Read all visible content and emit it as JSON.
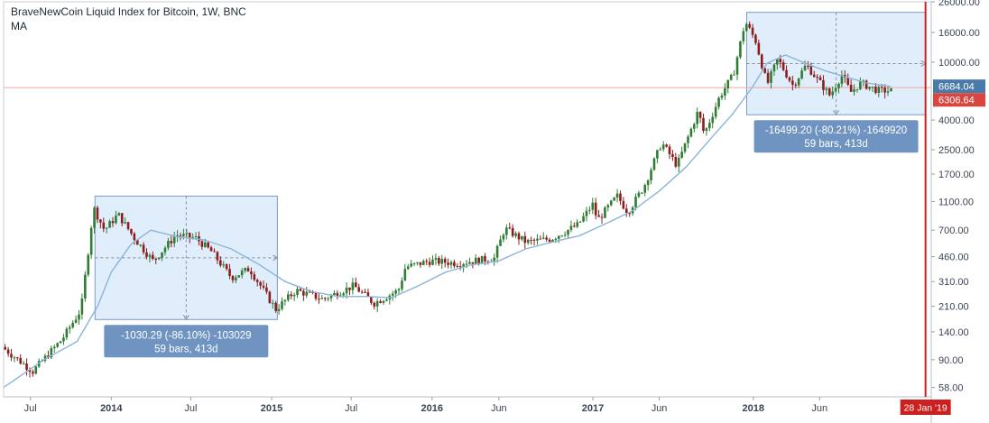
{
  "header": {
    "title": "BraveNewCoin Liquid Index for Bitcoin, 1W, BNC",
    "indicator": "MA"
  },
  "chart_data": {
    "type": "candlestick",
    "title": "BraveNewCoin Liquid Index for Bitcoin, 1W, BNC",
    "y_scale": "log",
    "ylim": [
      50,
      26000
    ],
    "xlim": [
      "2013-05-01",
      "2019-02-10"
    ],
    "grid": false,
    "y_ticks": [
      "26000.00",
      "16000.00",
      "10000.00",
      "6684.04",
      "6306.64",
      "4000.00",
      "2500.00",
      "1700.00",
      "1100.00",
      "700.00",
      "460.00",
      "310.00",
      "210.00",
      "140.00",
      "90.00",
      "58.00"
    ],
    "y_tick_values": [
      26000,
      16000,
      10000,
      6684.04,
      6306.64,
      4000,
      2500,
      1700,
      1100,
      700,
      460,
      310,
      210,
      140,
      90,
      58
    ],
    "x_ticks": [
      {
        "label": "Jul",
        "date": "2013-07-01"
      },
      {
        "label": "2014",
        "date": "2014-01-01"
      },
      {
        "label": "Jul",
        "date": "2014-07-01"
      },
      {
        "label": "2015",
        "date": "2015-01-01"
      },
      {
        "label": "Jul",
        "date": "2015-07-01"
      },
      {
        "label": "2016",
        "date": "2016-01-01"
      },
      {
        "label": "Jun",
        "date": "2016-06-01"
      },
      {
        "label": "2017",
        "date": "2017-01-01"
      },
      {
        "label": "Jun",
        "date": "2017-06-01"
      },
      {
        "label": "2018",
        "date": "2018-01-01"
      },
      {
        "label": "Jun",
        "date": "2018-06-01"
      }
    ],
    "price_labels": {
      "current": {
        "value": "6684.04",
        "color": "#4a7aa8",
        "numeric": 6684.04
      },
      "close": {
        "value": "6306.64",
        "color": "#d8473f",
        "numeric": 6306.64
      }
    },
    "vertical_marker": {
      "date": "2019-01-28",
      "label": "28 Jan '19",
      "color": "#cc1f1f"
    },
    "key_prices": [
      {
        "date": "2013-05-01",
        "price": 110
      },
      {
        "date": "2013-07-10",
        "price": 75
      },
      {
        "date": "2013-09-15",
        "price": 125
      },
      {
        "date": "2013-10-28",
        "price": 200
      },
      {
        "date": "2013-11-25",
        "price": 1000
      },
      {
        "date": "2013-12-20",
        "price": 700
      },
      {
        "date": "2014-01-20",
        "price": 900
      },
      {
        "date": "2014-03-01",
        "price": 600
      },
      {
        "date": "2014-04-10",
        "price": 430
      },
      {
        "date": "2014-06-01",
        "price": 650
      },
      {
        "date": "2014-07-15",
        "price": 620
      },
      {
        "date": "2014-08-20",
        "price": 500
      },
      {
        "date": "2014-10-05",
        "price": 330
      },
      {
        "date": "2014-11-15",
        "price": 380
      },
      {
        "date": "2015-01-14",
        "price": 200
      },
      {
        "date": "2015-03-01",
        "price": 270
      },
      {
        "date": "2015-05-01",
        "price": 235
      },
      {
        "date": "2015-07-10",
        "price": 290
      },
      {
        "date": "2015-08-25",
        "price": 220
      },
      {
        "date": "2015-10-20",
        "price": 270
      },
      {
        "date": "2015-11-05",
        "price": 390
      },
      {
        "date": "2016-01-01",
        "price": 430
      },
      {
        "date": "2016-03-01",
        "price": 415
      },
      {
        "date": "2016-05-25",
        "price": 450
      },
      {
        "date": "2016-06-18",
        "price": 720
      },
      {
        "date": "2016-08-05",
        "price": 580
      },
      {
        "date": "2016-10-01",
        "price": 610
      },
      {
        "date": "2016-12-01",
        "price": 760
      },
      {
        "date": "2017-01-04",
        "price": 1050
      },
      {
        "date": "2017-01-15",
        "price": 820
      },
      {
        "date": "2017-03-01",
        "price": 1200
      },
      {
        "date": "2017-03-25",
        "price": 930
      },
      {
        "date": "2017-05-01",
        "price": 1400
      },
      {
        "date": "2017-06-10",
        "price": 2800
      },
      {
        "date": "2017-07-15",
        "price": 1950
      },
      {
        "date": "2017-09-01",
        "price": 4600
      },
      {
        "date": "2017-09-15",
        "price": 3200
      },
      {
        "date": "2017-10-20",
        "price": 5800
      },
      {
        "date": "2017-11-20",
        "price": 8200
      },
      {
        "date": "2017-12-17",
        "price": 19000
      },
      {
        "date": "2018-01-10",
        "price": 14000
      },
      {
        "date": "2018-02-05",
        "price": 7000
      },
      {
        "date": "2018-03-01",
        "price": 10500
      },
      {
        "date": "2018-04-05",
        "price": 6900
      },
      {
        "date": "2018-05-05",
        "price": 9600
      },
      {
        "date": "2018-06-28",
        "price": 5900
      },
      {
        "date": "2018-07-25",
        "price": 8200
      },
      {
        "date": "2018-08-14",
        "price": 6200
      },
      {
        "date": "2018-09-05",
        "price": 7200
      },
      {
        "date": "2018-10-15",
        "price": 6400
      },
      {
        "date": "2018-11-10",
        "price": 6350
      }
    ],
    "ma_prices": [
      {
        "date": "2013-05-01",
        "price": 58
      },
      {
        "date": "2013-08-01",
        "price": 90
      },
      {
        "date": "2013-10-15",
        "price": 120
      },
      {
        "date": "2013-12-01",
        "price": 210
      },
      {
        "date": "2014-01-01",
        "price": 360
      },
      {
        "date": "2014-02-15",
        "price": 560
      },
      {
        "date": "2014-04-01",
        "price": 700
      },
      {
        "date": "2014-06-01",
        "price": 630
      },
      {
        "date": "2014-08-01",
        "price": 600
      },
      {
        "date": "2014-10-01",
        "price": 520
      },
      {
        "date": "2014-12-01",
        "price": 410
      },
      {
        "date": "2015-02-01",
        "price": 310
      },
      {
        "date": "2015-04-01",
        "price": 265
      },
      {
        "date": "2015-06-01",
        "price": 245
      },
      {
        "date": "2015-08-01",
        "price": 245
      },
      {
        "date": "2015-10-01",
        "price": 240
      },
      {
        "date": "2015-12-01",
        "price": 290
      },
      {
        "date": "2016-02-01",
        "price": 360
      },
      {
        "date": "2016-04-01",
        "price": 405
      },
      {
        "date": "2016-06-01",
        "price": 430
      },
      {
        "date": "2016-08-01",
        "price": 520
      },
      {
        "date": "2016-10-01",
        "price": 580
      },
      {
        "date": "2016-12-01",
        "price": 640
      },
      {
        "date": "2017-02-01",
        "price": 780
      },
      {
        "date": "2017-04-01",
        "price": 950
      },
      {
        "date": "2017-06-01",
        "price": 1300
      },
      {
        "date": "2017-08-01",
        "price": 1900
      },
      {
        "date": "2017-10-01",
        "price": 3100
      },
      {
        "date": "2017-11-15",
        "price": 4400
      },
      {
        "date": "2017-12-31",
        "price": 6800
      },
      {
        "date": "2018-02-01",
        "price": 9800
      },
      {
        "date": "2018-03-15",
        "price": 11200
      },
      {
        "date": "2018-05-01",
        "price": 9800
      },
      {
        "date": "2018-06-15",
        "price": 8700
      },
      {
        "date": "2018-08-01",
        "price": 7900
      },
      {
        "date": "2018-09-15",
        "price": 7200
      },
      {
        "date": "2018-11-10",
        "price": 6800
      }
    ],
    "measure_boxes": [
      {
        "x_start": "2013-11-25",
        "x_end": "2015-01-14",
        "y_top": 1200,
        "y_bottom": 170,
        "label_line1": "-1030.29 (-86.10%) -103029",
        "label_line2": "59 bars, 413d"
      },
      {
        "x_start": "2017-12-17",
        "x_end": "2019-01-28",
        "y_top": 22000,
        "y_bottom": 4350,
        "label_line1": "-16499.20 (-80.21%) -1649920",
        "label_line2": "59 bars, 413d"
      }
    ],
    "colors": {
      "up": "#2e7d32",
      "down": "#8b1d1d",
      "ma": "#8ab4d8",
      "box_fill": "#d6e8fb",
      "box_stroke": "#7a9cc6",
      "label_bg": "#7094c2"
    }
  }
}
